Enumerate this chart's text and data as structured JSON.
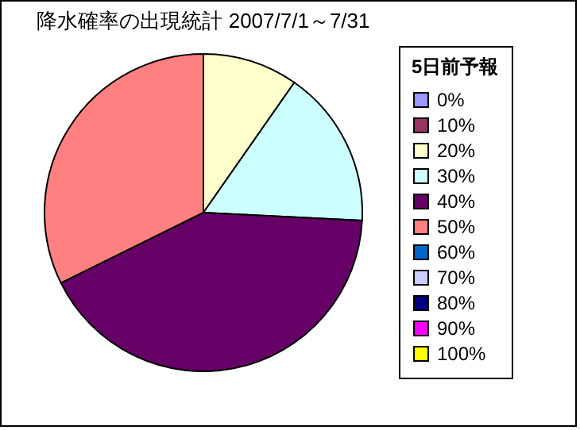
{
  "chart_data": {
    "type": "pie",
    "title": "降水確率の出現統計  2007/7/1～7/31",
    "legend_title": "5日前予報",
    "legend": "right",
    "categories": [
      "0%",
      "10%",
      "20%",
      "30%",
      "40%",
      "50%",
      "60%",
      "70%",
      "80%",
      "90%",
      "100%"
    ],
    "values": [
      0,
      0,
      9.7,
      16.1,
      41.9,
      32.3,
      0,
      0,
      0,
      0,
      0
    ],
    "colors": [
      "#9999ff",
      "#993366",
      "#ffffcc",
      "#ccffff",
      "#660066",
      "#ff8080",
      "#0066cc",
      "#ccccff",
      "#000080",
      "#ff00ff",
      "#ffff00"
    ]
  }
}
